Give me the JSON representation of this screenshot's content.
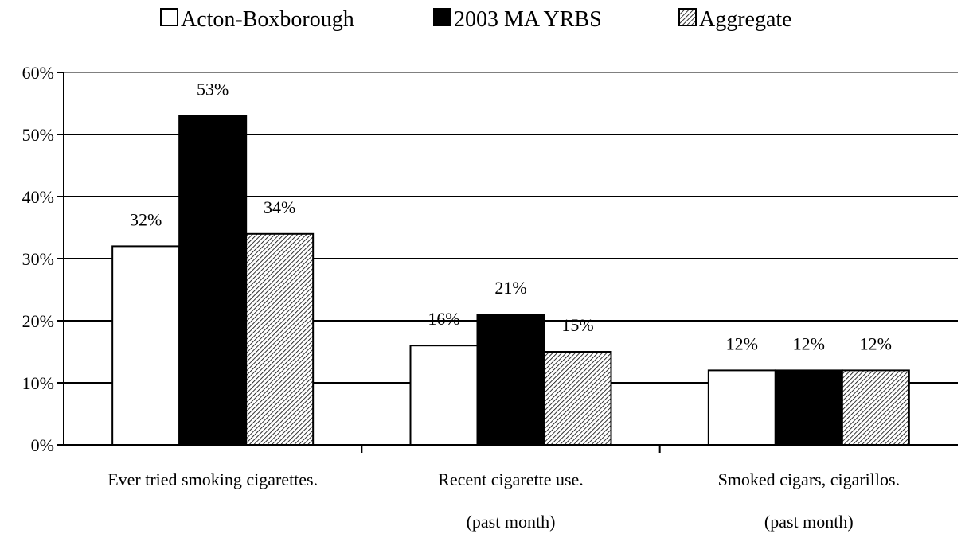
{
  "chart_data": {
    "type": "bar",
    "categories": [
      [
        "Ever tried smoking cigarettes."
      ],
      [
        "Recent cigarette use.",
        "(past month)"
      ],
      [
        "Smoked cigars, cigarillos.",
        "(past month)"
      ]
    ],
    "series": [
      {
        "name": "Acton-Boxborough",
        "values": [
          32,
          16,
          12
        ],
        "labels": [
          "32%",
          "16%",
          "12%"
        ],
        "fill": "white"
      },
      {
        "name": "2003 MA YRBS",
        "values": [
          53,
          21,
          12
        ],
        "labels": [
          "53%",
          "21%",
          "12%"
        ],
        "fill": "black"
      },
      {
        "name": "Aggregate",
        "values": [
          34,
          15,
          12
        ],
        "labels": [
          "34%",
          "15%",
          "12%"
        ],
        "fill": "hatched"
      }
    ],
    "ylim": [
      0,
      60
    ],
    "yticks": [
      "0%",
      "10%",
      "20%",
      "30%",
      "40%",
      "50%",
      "60%"
    ],
    "grid": true,
    "legend_position": "top"
  },
  "colors": {
    "bar_outline": "#000000",
    "black_series": "#000000",
    "white_series": "#ffffff",
    "gridline": "#000000"
  }
}
